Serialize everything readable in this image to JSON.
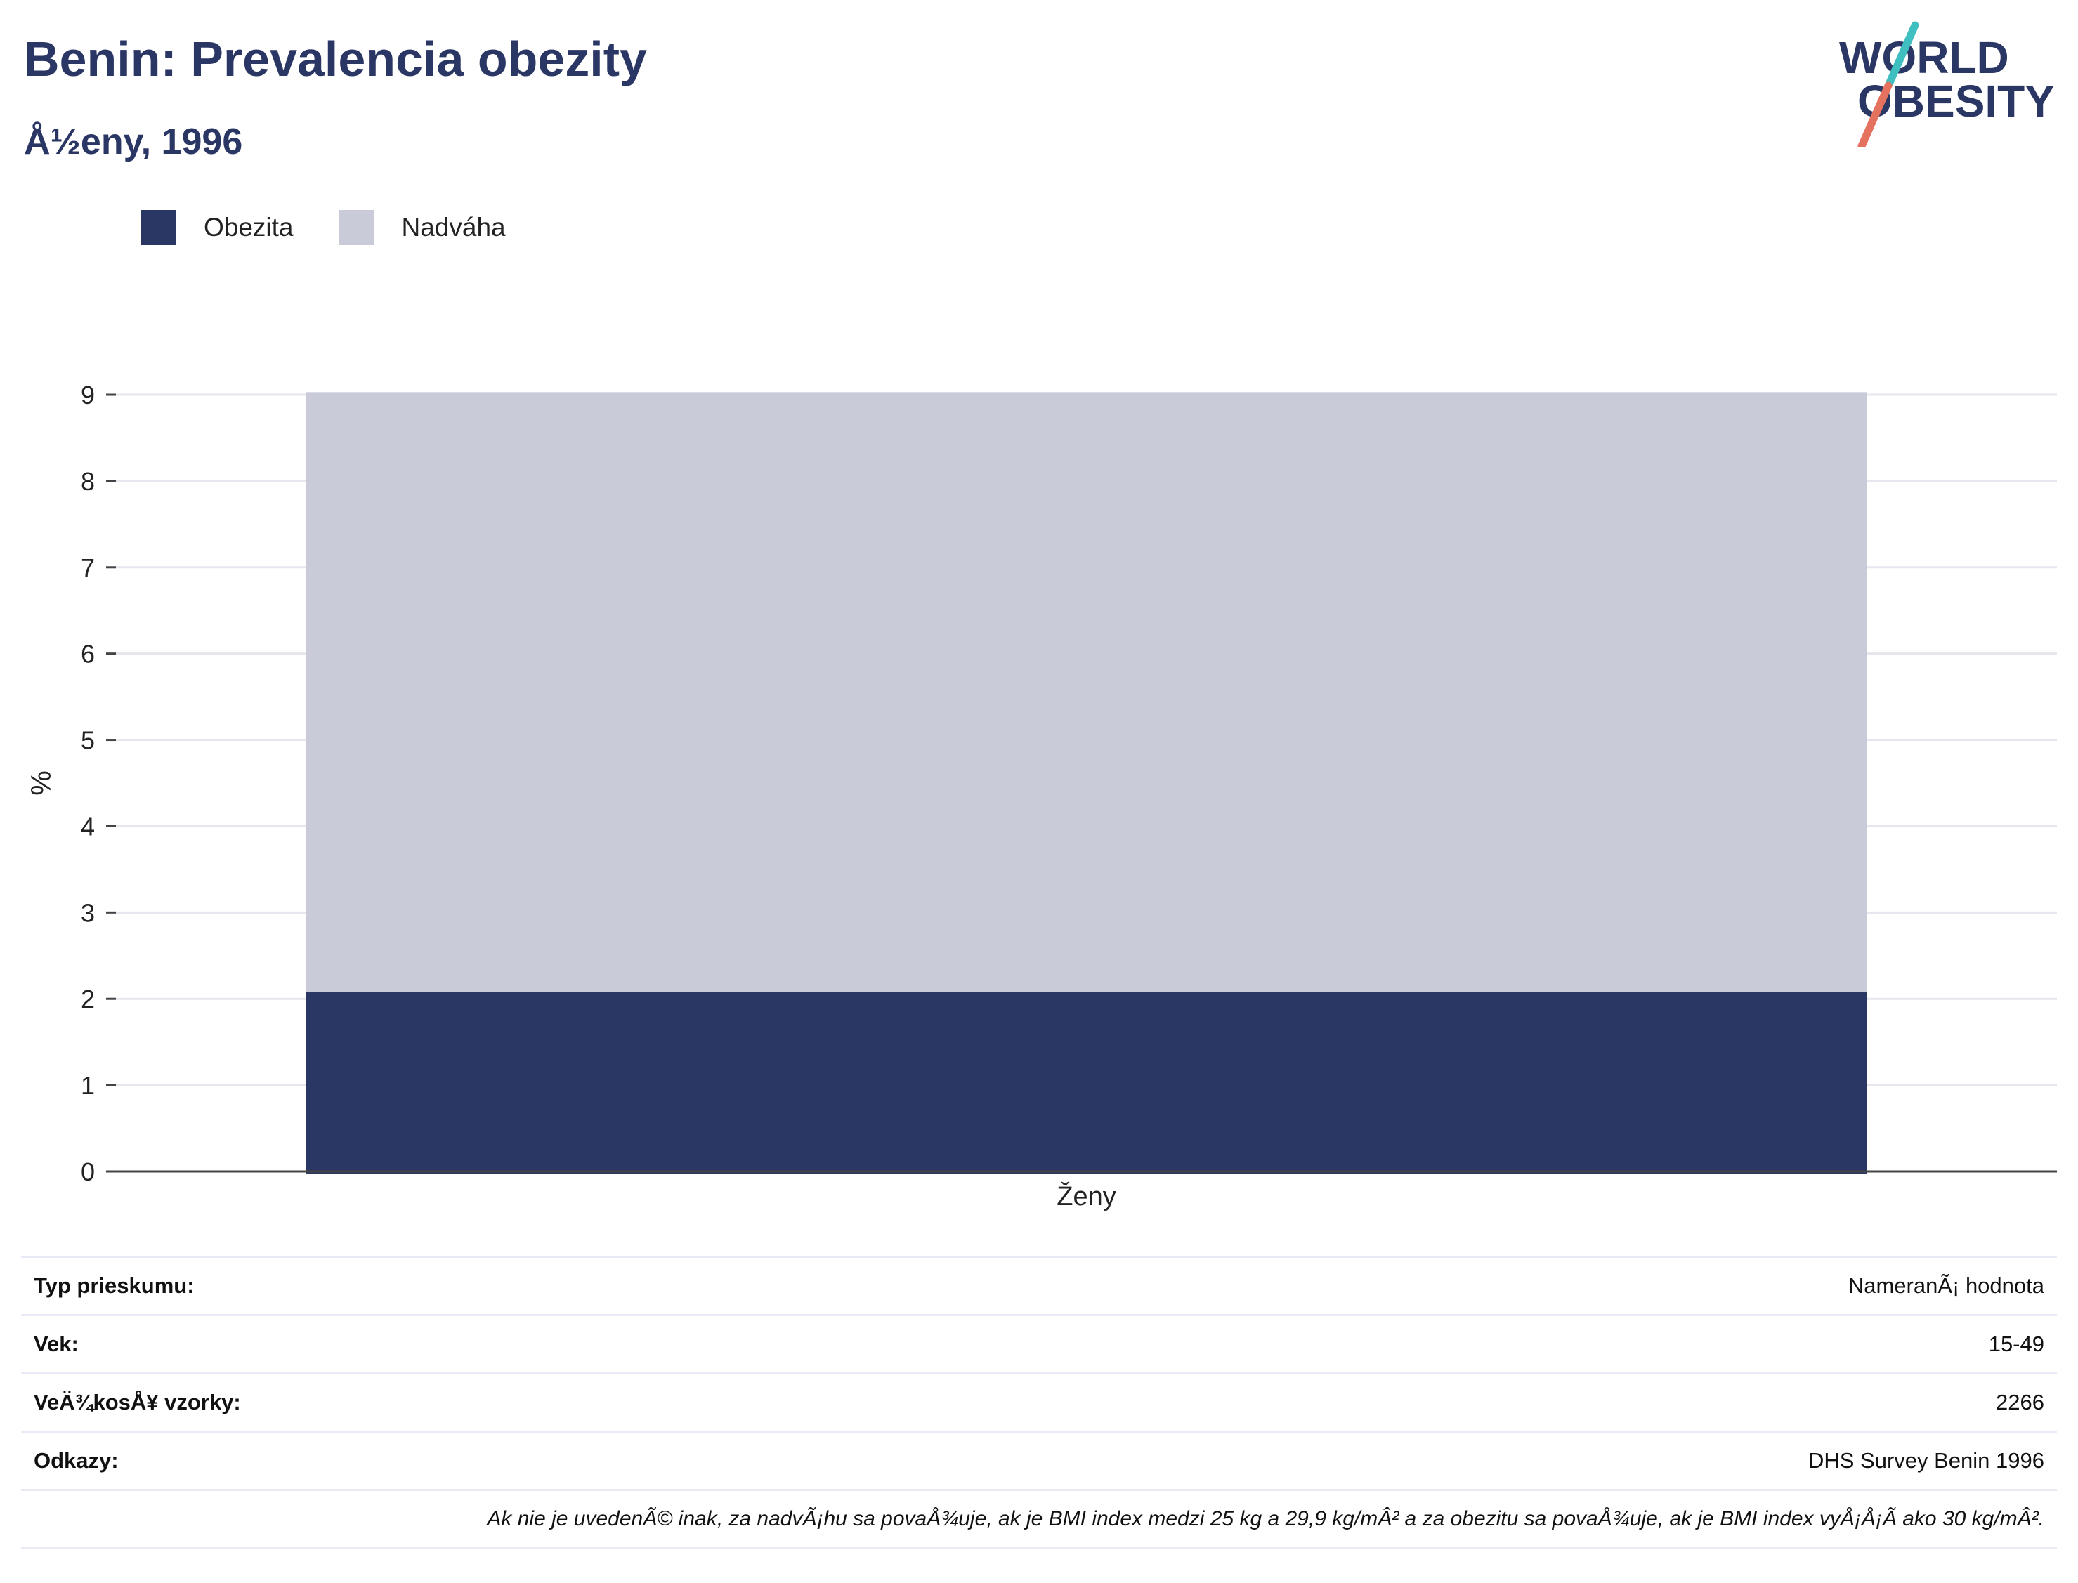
{
  "header": {
    "title": "Benin: Prevalencia obezity",
    "subtitle": "Å½eny, 1996"
  },
  "logo": {
    "line1": "WORLD",
    "line2": "OBESITY",
    "colors": {
      "text": "#2a3664",
      "slash_top": "#3fbfbf",
      "slash_bottom": "#e5715f"
    }
  },
  "legend": {
    "items": [
      {
        "label": "Obezita",
        "color": "#2a3664"
      },
      {
        "label": "Nadváha",
        "color": "#c9ccd8"
      }
    ]
  },
  "chart_data": {
    "type": "bar",
    "stacked": true,
    "categories": [
      "Ženy"
    ],
    "series": [
      {
        "name": "Obezita",
        "values": [
          2.08
        ],
        "color": "#2a3664"
      },
      {
        "name": "Nadváha",
        "values": [
          6.95
        ],
        "color": "#c9ccd8"
      }
    ],
    "xlabel": "",
    "ylabel": "%",
    "ylim": [
      0,
      9
    ],
    "yticks": [
      "0",
      "1",
      "2",
      "3",
      "4",
      "5",
      "6",
      "7",
      "8",
      "9"
    ],
    "grid": true,
    "legend_position": "top-left"
  },
  "info": {
    "rows": [
      {
        "key": "Typ prieskumu:",
        "value": "NameranÃ¡ hodnota"
      },
      {
        "key": "Vek:",
        "value": "15-49"
      },
      {
        "key": "VeÄ¾kosÅ¥ vzorky:",
        "value": "2266"
      },
      {
        "key": "Odkazy:",
        "value": "DHS Survey Benin 1996"
      }
    ],
    "note": "Ak nie je uvedenÃ© inak, za nadvÃ¡hu sa povaÅ¾uje, ak je BMI index medzi 25 kg a 29,9 kg/mÂ² a za obezitu sa povaÅ¾uje, ak je BMI index vyÅ¡Å¡Ã ako 30 kg/mÂ²."
  }
}
